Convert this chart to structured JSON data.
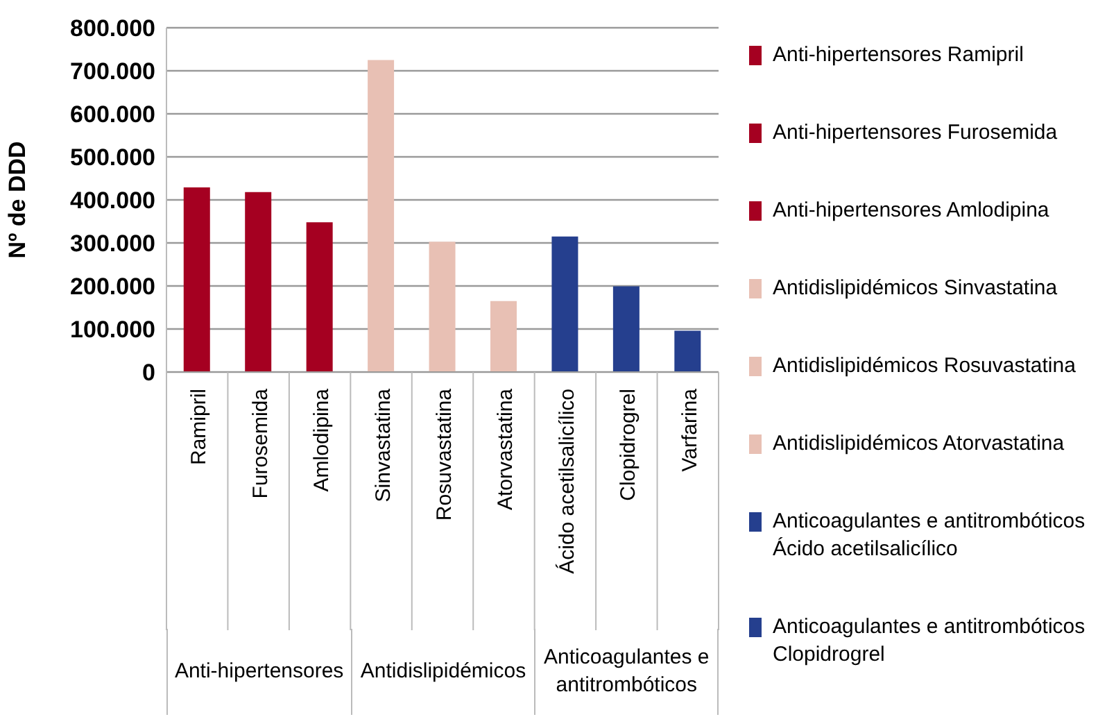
{
  "chart_data": {
    "type": "bar",
    "ylabel": "Nº de DDD",
    "categories": [
      "Ramipril",
      "Furosemida",
      "Amlodipina",
      "Sinvastatina",
      "Rosuvastatina",
      "Atorvastatina",
      "Ácido acetilsalicílico",
      "Clopidrogrel",
      "Varfarina"
    ],
    "series": [
      {
        "name": "Anti-hipertensores Ramipril",
        "color": "#a50021",
        "values": [
          429000,
          null,
          null,
          null,
          null,
          null,
          null,
          null,
          null
        ]
      },
      {
        "name": "Anti-hipertensores Furosemida",
        "color": "#a50021",
        "values": [
          null,
          418000,
          null,
          null,
          null,
          null,
          null,
          null,
          null
        ]
      },
      {
        "name": "Anti-hipertensores Amlodipina",
        "color": "#a50021",
        "values": [
          null,
          null,
          348000,
          null,
          null,
          null,
          null,
          null,
          null
        ]
      },
      {
        "name": "Antidislipidémicos Sinvastatina",
        "color": "#e8c0b4",
        "values": [
          null,
          null,
          null,
          725000,
          null,
          null,
          null,
          null,
          null
        ]
      },
      {
        "name": "Antidislipidémicos Rosuvastatina",
        "color": "#e8c0b4",
        "values": [
          null,
          null,
          null,
          null,
          303000,
          null,
          null,
          null,
          null
        ]
      },
      {
        "name": "Antidislipidémicos Atorvastatina",
        "color": "#e8c0b4",
        "values": [
          null,
          null,
          null,
          null,
          null,
          165000,
          null,
          null,
          null
        ]
      },
      {
        "name": "Anticoagulantes e antitrombóticos Ácido acetilsalicílico",
        "color": "#253f8e",
        "values": [
          null,
          null,
          null,
          null,
          null,
          null,
          315000,
          null,
          null
        ]
      },
      {
        "name": "Anticoagulantes e antitrombóticos Clopidrogrel",
        "color": "#253f8e",
        "values": [
          null,
          null,
          null,
          null,
          null,
          null,
          null,
          199000,
          null
        ]
      },
      {
        "color": "#253f8e",
        "values": [
          null,
          null,
          null,
          null,
          null,
          null,
          null,
          null,
          96000
        ]
      }
    ],
    "stacked": true,
    "ylim": [
      0,
      800000
    ],
    "yticks": [
      0,
      {
        "value": 100000,
        "label": "100.000"
      },
      {
        "value": 200000,
        "label": "200.000"
      },
      {
        "value": 300000,
        "label": "300.000"
      },
      {
        "value": 400000,
        "label": "400.000"
      },
      {
        "value": 500000,
        "label": "500.000"
      },
      {
        "value": 600000,
        "label": "600.000"
      },
      {
        "value": 700000,
        "label": "700.000"
      },
      {
        "value": 800000,
        "label": "800.000"
      }
    ],
    "annotations": [
      "Anti-hipertensores",
      "Antidislipidémicos",
      "Anticoagulantes e antitrombóticos"
    ],
    "grid": "y",
    "legend": "right"
  }
}
